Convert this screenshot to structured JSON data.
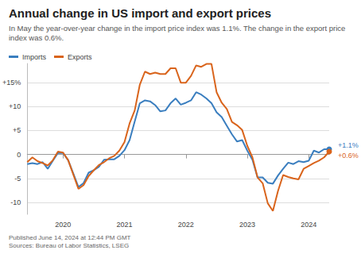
{
  "chart_data": {
    "type": "line",
    "title": "Annual change in US import and export prices",
    "subtitle": "In May the year-over-year change in the import price index was 1.1%. The change in the export price index was 0.6%.",
    "footer": [
      "Published June 14, 2024 at 12:44 PM GMT",
      "Sources: Bureau of Labor Statistics, LSEG"
    ],
    "categories": [
      null,
      null,
      null,
      null,
      null,
      null,
      null,
      "2020",
      null,
      null,
      null,
      null,
      null,
      null,
      null,
      null,
      null,
      null,
      null,
      "2021",
      null,
      null,
      null,
      null,
      null,
      null,
      null,
      null,
      null,
      null,
      null,
      "2022",
      null,
      null,
      null,
      null,
      null,
      null,
      null,
      null,
      null,
      null,
      null,
      "2023",
      null,
      null,
      null,
      null,
      null,
      null,
      null,
      null,
      null,
      null,
      null,
      "2024",
      null,
      null,
      null,
      null
    ],
    "series": [
      {
        "name": "Imports",
        "color": "#3a7ebf",
        "end_label": "+1.1%",
        "marker": "end",
        "values": [
          -2.0,
          -1.8,
          -2.0,
          -1.6,
          -3.0,
          -1.3,
          0.3,
          0.3,
          -1.2,
          -4.0,
          -6.8,
          -6.0,
          -3.8,
          -3.3,
          -2.6,
          -1.1,
          -1.0,
          -1.0,
          -0.3,
          0.9,
          3.0,
          6.9,
          10.7,
          11.3,
          11.1,
          10.3,
          9.0,
          9.2,
          10.7,
          11.7,
          10.4,
          10.8,
          11.3,
          13.0,
          12.5,
          11.7,
          10.7,
          8.8,
          7.8,
          6.0,
          4.2,
          2.7,
          3.0,
          0.8,
          -1.1,
          -4.8,
          -4.8,
          -5.9,
          -6.1,
          -4.4,
          -3.0,
          -1.7,
          -2.0,
          -1.4,
          -1.6,
          -1.3,
          0.8,
          0.4,
          1.1,
          1.1
        ]
      },
      {
        "name": "Exports",
        "color": "#d9641c",
        "end_label": "+0.6%",
        "marker": "end",
        "values": [
          -1.6,
          -0.6,
          -1.4,
          -1.8,
          -2.3,
          -1.2,
          0.6,
          0.4,
          -1.2,
          -4.2,
          -7.2,
          -6.4,
          -4.5,
          -3.3,
          -2.2,
          -1.6,
          -0.8,
          -0.3,
          0.8,
          2.6,
          6.5,
          9.2,
          14.6,
          17.3,
          16.8,
          17.1,
          16.8,
          16.8,
          18.0,
          18.0,
          15.0,
          15.0,
          16.4,
          18.6,
          18.3,
          18.9,
          18.9,
          13.0,
          10.8,
          9.5,
          6.8,
          6.1,
          5.1,
          1.8,
          -0.6,
          -4.8,
          -6.0,
          -10.2,
          -11.8,
          -7.6,
          -4.3,
          -4.7,
          -5.0,
          -5.2,
          -3.0,
          -2.4,
          -1.8,
          -1.3,
          -0.6,
          0.6
        ]
      }
    ],
    "ylim": [
      -12.5,
      19
    ],
    "yticks": [
      -10,
      -5,
      0,
      {
        "value": 5,
        "label": "+5"
      },
      {
        "value": 10,
        "label": "+10"
      },
      {
        "value": 15,
        "label": "+15%"
      }
    ],
    "grid": true,
    "legend": "top-left"
  }
}
